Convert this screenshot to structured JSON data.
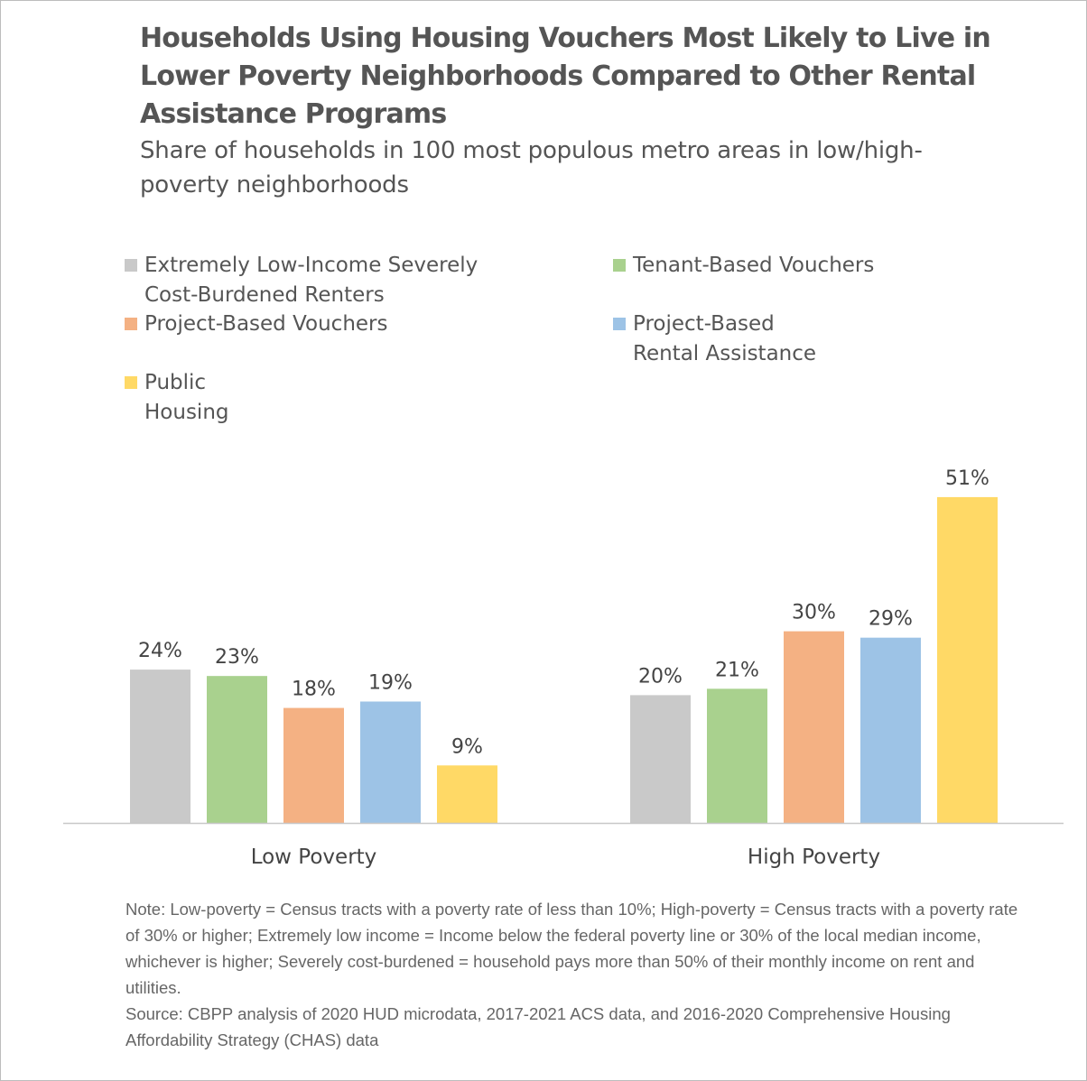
{
  "chart_data": {
    "type": "bar",
    "title": "Households Using Housing Vouchers Most Likely to Live in Lower Poverty Neighborhoods Compared to Other Rental Assistance Programs",
    "subtitle": "Share of households in 100 most populous metro areas in low/high-poverty neighborhoods",
    "categories": [
      "Low Poverty",
      "High Poverty"
    ],
    "series": [
      {
        "name": "Extremely Low-Income Severely Cost-Burdened Renters",
        "values": [
          24,
          20
        ],
        "labels": [
          "24%",
          "20%"
        ],
        "color": "#c9c9c9"
      },
      {
        "name": "Tenant-Based Vouchers",
        "values": [
          23,
          21
        ],
        "labels": [
          "23%",
          "21%"
        ],
        "color": "#a9d18e"
      },
      {
        "name": "Project-Based Vouchers",
        "values": [
          18,
          30
        ],
        "labels": [
          "18%",
          "30%"
        ],
        "color": "#f4b183"
      },
      {
        "name": "Project-Based Rental Assistance",
        "values": [
          19,
          29
        ],
        "labels": [
          "19%",
          "29%"
        ],
        "color": "#9dc3e6"
      },
      {
        "name": "Public Housing",
        "values": [
          9,
          51
        ],
        "labels": [
          "9%",
          "51%"
        ],
        "color": "#ffd966"
      }
    ],
    "ylim": [
      0,
      60
    ],
    "grid": false,
    "legend_position": "top"
  },
  "legend": [
    {
      "line1": "Extremely Low-Income Severely",
      "line2": "Cost-Burdened Renters"
    },
    {
      "line1": "Tenant-Based Vouchers",
      "line2": ""
    },
    {
      "line1": "Project-Based Vouchers",
      "line2": ""
    },
    {
      "line1": "Project-Based",
      "line2": "Rental Assistance"
    },
    {
      "line1": "Public",
      "line2": "Housing"
    }
  ],
  "note": "Note: Low-poverty = Census tracts with a poverty rate of less than 10%; High-poverty = Census tracts with a poverty rate of 30% or higher; Extremely low income = Income below the federal poverty line or 30% of the local median income, whichever is higher; Severely cost-burdened = household pays more than 50% of their monthly income on rent and utilities.",
  "source": "Source: CBPP analysis of 2020 HUD microdata, 2017-2021 ACS data, and 2016-2020 Comprehensive Housing Affordability Strategy (CHAS) data"
}
